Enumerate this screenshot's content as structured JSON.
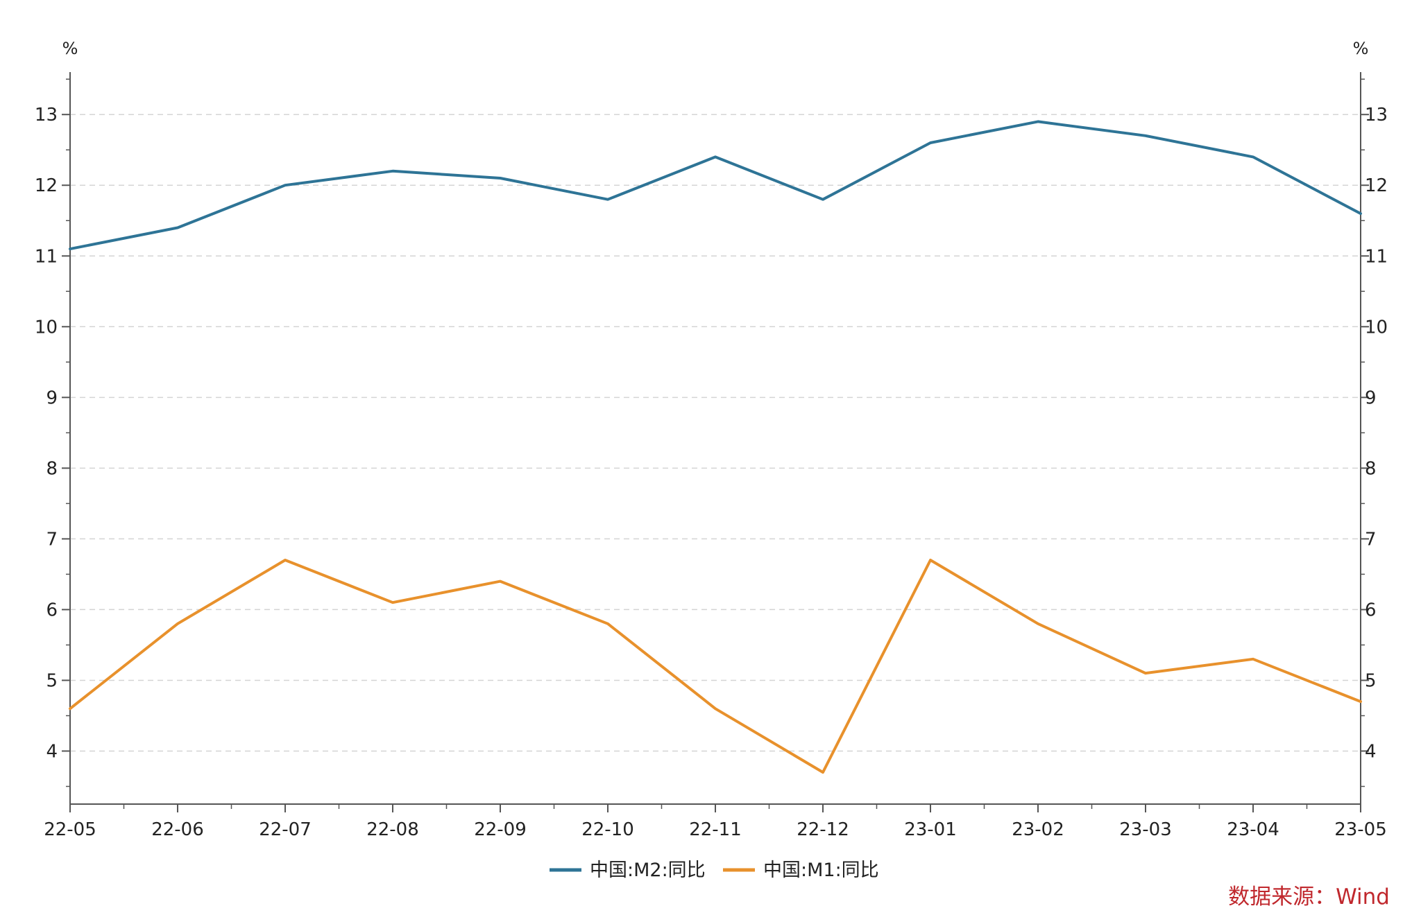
{
  "chart_data": {
    "type": "line",
    "x": [
      "22-05",
      "22-06",
      "22-07",
      "22-08",
      "22-09",
      "22-10",
      "22-11",
      "22-12",
      "23-01",
      "23-02",
      "23-03",
      "23-04",
      "23-05"
    ],
    "series": [
      {
        "name": "中国:M2:同比",
        "color": "#2e7496",
        "values": [
          11.1,
          11.4,
          12.0,
          12.2,
          12.1,
          11.8,
          12.4,
          11.8,
          12.6,
          12.9,
          12.7,
          12.4,
          11.6
        ]
      },
      {
        "name": "中国:M1:同比",
        "color": "#e8912c",
        "values": [
          4.6,
          5.8,
          6.7,
          6.1,
          6.4,
          5.8,
          4.6,
          3.7,
          6.7,
          5.8,
          5.1,
          5.3,
          4.7
        ]
      }
    ],
    "y_left": {
      "unit": "%",
      "ticks": [
        4,
        5,
        6,
        7,
        8,
        9,
        10,
        11,
        12,
        13
      ]
    },
    "y_right": {
      "unit": "%",
      "ticks": [
        4,
        5,
        6,
        7,
        8,
        9,
        10,
        11,
        12,
        13
      ]
    },
    "ylim": [
      3.25,
      13.6
    ],
    "grid": true,
    "grid_style": "dashed-horizontal",
    "legend_position": "bottom-center",
    "source": "数据来源：Wind"
  }
}
